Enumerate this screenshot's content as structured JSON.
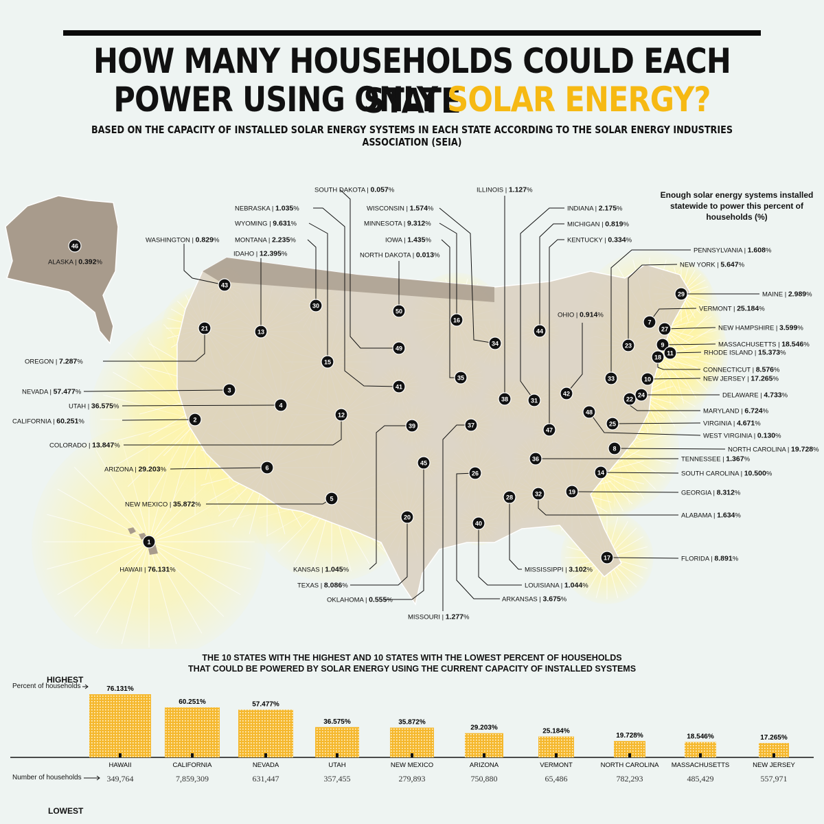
{
  "title": {
    "line1": "HOW MANY HOUSEHOLDS COULD EACH STATE",
    "line2_prefix": "POWER USING ONLY",
    "line2_highlight": "SOLAR ENERGY?"
  },
  "subtitle": "BASED ON THE CAPACITY OF INSTALLED SOLAR ENERGY SYSTEMS IN EACH STATE ACCORDING TO THE SOLAR ENERGY INDUSTRIES ASSOCIATION (SEIA)",
  "legend_note": "Enough solar energy systems installed statewide to power this percent of households (%)",
  "colors": {
    "highlight": "#f6b913",
    "bar": "#f5b82e",
    "land": "#d9cfc0",
    "land_dark": "#a89b8c",
    "glow": "#fff3a0",
    "marker": "#111111"
  },
  "states": [
    {
      "rank": 1,
      "name": "HAWAII",
      "pct": "76.131"
    },
    {
      "rank": 2,
      "name": "CALIFORNIA",
      "pct": "60.251"
    },
    {
      "rank": 3,
      "name": "NEVADA",
      "pct": "57.477"
    },
    {
      "rank": 4,
      "name": "UTAH",
      "pct": "36.575"
    },
    {
      "rank": 5,
      "name": "NEW MEXICO",
      "pct": "35.872"
    },
    {
      "rank": 6,
      "name": "ARIZONA",
      "pct": "29.203"
    },
    {
      "rank": 7,
      "name": "VERMONT",
      "pct": "25.184"
    },
    {
      "rank": 8,
      "name": "NORTH CAROLINA",
      "pct": "19.728"
    },
    {
      "rank": 9,
      "name": "MASSACHUSETTS",
      "pct": "18.546"
    },
    {
      "rank": 10,
      "name": "NEW JERSEY",
      "pct": "17.265"
    },
    {
      "rank": 11,
      "name": "RHODE ISLAND",
      "pct": "15.373"
    },
    {
      "rank": 12,
      "name": "COLORADO",
      "pct": "13.847"
    },
    {
      "rank": 13,
      "name": "IDAHO",
      "pct": "12.395"
    },
    {
      "rank": 14,
      "name": "SOUTH CAROLINA",
      "pct": "10.500"
    },
    {
      "rank": 15,
      "name": "WYOMING",
      "pct": "9.631"
    },
    {
      "rank": 16,
      "name": "MINNESOTA",
      "pct": "9.312"
    },
    {
      "rank": 17,
      "name": "FLORIDA",
      "pct": "8.891"
    },
    {
      "rank": 18,
      "name": "CONNECTICUT",
      "pct": "8.576"
    },
    {
      "rank": 19,
      "name": "GEORGIA",
      "pct": "8.312"
    },
    {
      "rank": 20,
      "name": "TEXAS",
      "pct": "8.086"
    },
    {
      "rank": 21,
      "name": "OREGON",
      "pct": "7.287"
    },
    {
      "rank": 22,
      "name": "MARYLAND",
      "pct": "6.724"
    },
    {
      "rank": 23,
      "name": "NEW YORK",
      "pct": "5.647"
    },
    {
      "rank": 24,
      "name": "DELAWARE",
      "pct": "4.733"
    },
    {
      "rank": 25,
      "name": "VIRGINIA",
      "pct": "4.671"
    },
    {
      "rank": 26,
      "name": "ARKANSAS",
      "pct": "3.675"
    },
    {
      "rank": 27,
      "name": "NEW HAMPSHIRE",
      "pct": "3.599"
    },
    {
      "rank": 28,
      "name": "MISSISSIPPI",
      "pct": "3.102"
    },
    {
      "rank": 29,
      "name": "MAINE",
      "pct": "2.989"
    },
    {
      "rank": 30,
      "name": "MONTANA",
      "pct": "2.235"
    },
    {
      "rank": 31,
      "name": "INDIANA",
      "pct": "2.175"
    },
    {
      "rank": 32,
      "name": "ALABAMA",
      "pct": "1.634"
    },
    {
      "rank": 33,
      "name": "PENNSYLVANIA",
      "pct": "1.608"
    },
    {
      "rank": 34,
      "name": "WISCONSIN",
      "pct": "1.574"
    },
    {
      "rank": 35,
      "name": "IOWA",
      "pct": "1.435"
    },
    {
      "rank": 36,
      "name": "TENNESSEE",
      "pct": "1.367"
    },
    {
      "rank": 37,
      "name": "MISSOURI",
      "pct": "1.277"
    },
    {
      "rank": 38,
      "name": "ILLINOIS",
      "pct": "1.127"
    },
    {
      "rank": 39,
      "name": "KANSAS",
      "pct": "1.045"
    },
    {
      "rank": 40,
      "name": "LOUISIANA",
      "pct": "1.044"
    },
    {
      "rank": 41,
      "name": "NEBRASKA",
      "pct": "1.035"
    },
    {
      "rank": 42,
      "name": "OHIO",
      "pct": "0.914"
    },
    {
      "rank": 43,
      "name": "WASHINGTON",
      "pct": "0.829"
    },
    {
      "rank": 44,
      "name": "MICHIGAN",
      "pct": "0.819"
    },
    {
      "rank": 45,
      "name": "OKLAHOMA",
      "pct": "0.555"
    },
    {
      "rank": 46,
      "name": "ALASKA",
      "pct": "0.392"
    },
    {
      "rank": 47,
      "name": "KENTUCKY",
      "pct": "0.334"
    },
    {
      "rank": 48,
      "name": "WEST VIRGINIA",
      "pct": "0.130"
    },
    {
      "rank": 49,
      "name": "SOUTH DAKOTA",
      "pct": "0.057"
    },
    {
      "rank": 50,
      "name": "NORTH DAKOTA",
      "pct": "0.013"
    }
  ],
  "bottom": {
    "title_line1": "THE 10 STATES WITH THE HIGHEST AND 10 STATES WITH THE LOWEST PERCENT OF HOUSEHOLDS",
    "title_line2": "THAT COULD BE POWERED BY SOLAR ENERGY USING THE CURRENT CAPACITY OF INSTALLED SYSTEMS",
    "highest_label": "HIGHEST",
    "lowest_label": "LOWEST",
    "pct_label": "Percent of households",
    "households_label": "Number of households"
  },
  "chart_data": {
    "type": "bar",
    "categories": [
      "HAWAII",
      "CALIFORNIA",
      "NEVADA",
      "UTAH",
      "NEW MEXICO",
      "ARIZONA",
      "VERMONT",
      "NORTH CAROLINA",
      "MASSACHUSETTS",
      "NEW JERSEY"
    ],
    "values": [
      76.131,
      60.251,
      57.477,
      36.575,
      35.872,
      29.203,
      25.184,
      19.728,
      18.546,
      17.265
    ],
    "value_labels": [
      "76.131%",
      "60.251%",
      "57.477%",
      "36.575%",
      "35.872%",
      "29.203%",
      "25.184%",
      "19.728%",
      "18.546%",
      "17.265%"
    ],
    "households": [
      "349,764",
      "7,859,309",
      "631,447",
      "357,455",
      "279,893",
      "750,880",
      "65,486",
      "782,293",
      "485,429",
      "557,971"
    ],
    "ylim": [
      0,
      80
    ]
  }
}
